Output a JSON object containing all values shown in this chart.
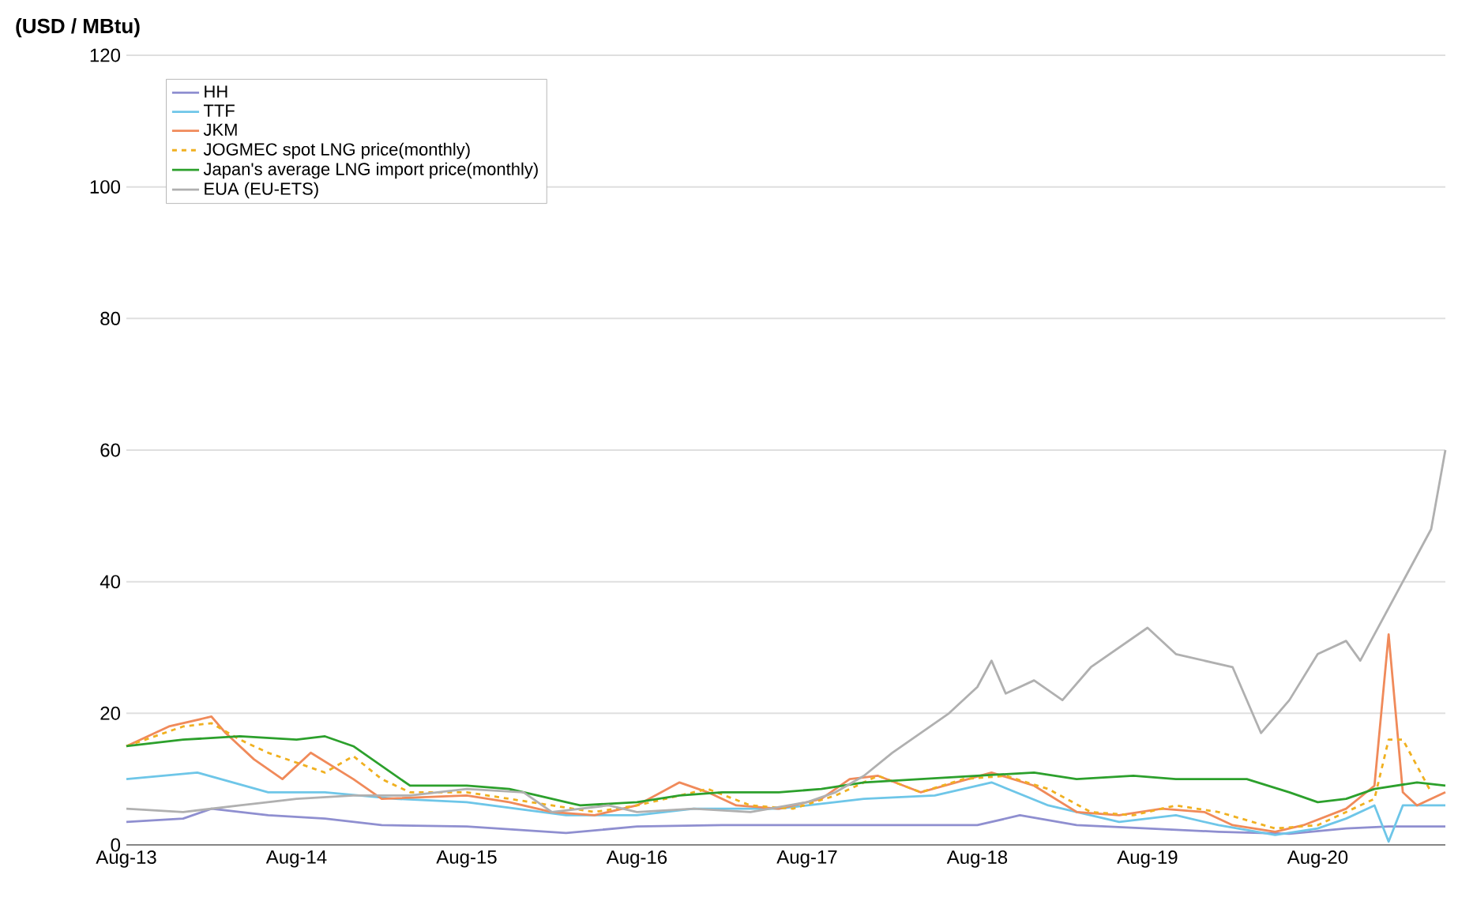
{
  "chart_data": {
    "type": "line",
    "ylabel": "(USD / MBtu)",
    "grid": "y",
    "legend": "top left",
    "ylim": [
      0,
      120
    ],
    "yticks": [
      0,
      20,
      40,
      60,
      80,
      100,
      120
    ],
    "xlim": [
      "2013-08",
      "2021-05"
    ],
    "xticks": [
      {
        "value": "2013-08",
        "label": "Aug-13"
      },
      {
        "value": "2014-08",
        "label": "Aug-14"
      },
      {
        "value": "2015-08",
        "label": "Aug-15"
      },
      {
        "value": "2016-08",
        "label": "Aug-16"
      },
      {
        "value": "2017-08",
        "label": "Aug-17"
      },
      {
        "value": "2018-08",
        "label": "Aug-18"
      },
      {
        "value": "2019-08",
        "label": "Aug-19"
      },
      {
        "value": "2020-08",
        "label": "Aug-20"
      }
    ],
    "series": [
      {
        "name": "HH",
        "color": "#8f8fd0",
        "x": [
          "2013-08",
          "2013-12",
          "2014-02",
          "2014-06",
          "2014-10",
          "2015-02",
          "2015-08",
          "2016-03",
          "2016-08",
          "2017-02",
          "2017-08",
          "2018-02",
          "2018-08",
          "2018-11",
          "2019-03",
          "2019-08",
          "2020-01",
          "2020-06",
          "2020-10",
          "2021-01",
          "2021-05"
        ],
        "values": [
          3.5,
          4,
          5.5,
          4.5,
          4,
          3,
          2.8,
          1.8,
          2.8,
          3,
          3,
          3,
          3,
          4.5,
          3,
          2.5,
          2,
          1.7,
          2.5,
          2.8,
          2.8
        ]
      },
      {
        "name": "TTF",
        "color": "#6ec6e8",
        "x": [
          "2013-08",
          "2014-01",
          "2014-06",
          "2014-10",
          "2015-03",
          "2015-08",
          "2016-03",
          "2016-08",
          "2016-12",
          "2017-06",
          "2017-12",
          "2018-05",
          "2018-09",
          "2019-01",
          "2019-06",
          "2019-10",
          "2020-01",
          "2020-05",
          "2020-08",
          "2020-10",
          "2020-12",
          "2021-01",
          "2021-02",
          "2021-05"
        ],
        "values": [
          10,
          11,
          8,
          8,
          7,
          6.5,
          4.5,
          4.5,
          5.5,
          5.5,
          7,
          7.5,
          9.5,
          6,
          3.5,
          4.5,
          3,
          1.5,
          2.5,
          4,
          6,
          0.5,
          6,
          6
        ]
      },
      {
        "name": "JKM",
        "color": "#f08a5a",
        "x": [
          "2013-08",
          "2013-11",
          "2014-02",
          "2014-03",
          "2014-05",
          "2014-07",
          "2014-09",
          "2014-12",
          "2015-02",
          "2015-08",
          "2015-11",
          "2016-02",
          "2016-05",
          "2016-08",
          "2016-11",
          "2017-01",
          "2017-03",
          "2017-06",
          "2017-09",
          "2017-11",
          "2018-01",
          "2018-04",
          "2018-09",
          "2018-12",
          "2019-03",
          "2019-06",
          "2019-09",
          "2019-12",
          "2020-02",
          "2020-05",
          "2020-07",
          "2020-10",
          "2020-12",
          "2021-01",
          "2021-02",
          "2021-03",
          "2021-05"
        ],
        "values": [
          15,
          18,
          19.5,
          17,
          13,
          10,
          14,
          10,
          7,
          7.5,
          6.5,
          5,
          4.5,
          6,
          9.5,
          8,
          6,
          5.5,
          7,
          10,
          10.5,
          8,
          11,
          9,
          5,
          4.5,
          5.5,
          5,
          3,
          2,
          3,
          5.5,
          9,
          32,
          8,
          6,
          8
        ]
      },
      {
        "name": "JOGMEC spot LNG price(monthly)",
        "color": "#f0b020",
        "line_style": "dashed",
        "x": [
          "2013-08",
          "2013-10",
          "2013-12",
          "2014-02",
          "2014-04",
          "2014-06",
          "2014-08",
          "2014-10",
          "2014-12",
          "2015-02",
          "2015-04",
          "2015-08",
          "2015-11",
          "2016-02",
          "2016-05",
          "2016-08",
          "2016-11",
          "2017-01",
          "2017-04",
          "2017-07",
          "2017-10",
          "2018-01",
          "2018-04",
          "2018-07",
          "2018-10",
          "2019-01",
          "2019-04",
          "2019-07",
          "2019-10",
          "2020-01",
          "2020-05",
          "2020-08",
          "2020-10",
          "2020-12",
          "2021-01",
          "2021-02",
          "2021-04"
        ],
        "values": [
          15,
          16.5,
          18,
          18.5,
          16,
          14,
          12.5,
          11,
          13.5,
          10,
          8,
          8,
          7,
          6,
          5,
          6,
          7.5,
          8.5,
          6,
          5.5,
          7.5,
          10.5,
          8,
          10,
          10.5,
          8.5,
          5,
          4.5,
          6,
          5,
          2.5,
          3,
          5,
          7,
          16,
          16,
          8
        ]
      },
      {
        "name": "Japan's average LNG import price(monthly)",
        "color": "#2ca02c",
        "x": [
          "2013-08",
          "2013-12",
          "2014-04",
          "2014-08",
          "2014-10",
          "2014-12",
          "2015-02",
          "2015-04",
          "2015-08",
          "2015-11",
          "2016-01",
          "2016-04",
          "2016-08",
          "2016-11",
          "2017-02",
          "2017-06",
          "2017-09",
          "2017-12",
          "2018-04",
          "2018-08",
          "2018-12",
          "2019-03",
          "2019-07",
          "2019-10",
          "2020-03",
          "2020-06",
          "2020-08",
          "2020-10",
          "2020-12",
          "2021-03",
          "2021-05"
        ],
        "values": [
          15,
          16,
          16.5,
          16,
          16.5,
          15,
          12,
          9,
          9,
          8.5,
          7.5,
          6,
          6.5,
          7.5,
          8,
          8,
          8.5,
          9.5,
          10,
          10.5,
          11,
          10,
          10.5,
          10,
          10,
          8,
          6.5,
          7,
          8.5,
          9.5,
          9
        ]
      },
      {
        "name": "EUA (EU-ETS)",
        "color": "#b0b0b0",
        "x": [
          "2013-08",
          "2013-12",
          "2014-04",
          "2014-08",
          "2014-12",
          "2015-04",
          "2015-08",
          "2015-12",
          "2016-02",
          "2016-06",
          "2016-08",
          "2016-12",
          "2017-04",
          "2017-08",
          "2017-10",
          "2017-12",
          "2018-02",
          "2018-04",
          "2018-06",
          "2018-08",
          "2018-09",
          "2018-10",
          "2018-12",
          "2019-02",
          "2019-04",
          "2019-08",
          "2019-10",
          "2019-12",
          "2020-02",
          "2020-04",
          "2020-06",
          "2020-08",
          "2020-10",
          "2020-11",
          "2021-02",
          "2021-03",
          "2021-04",
          "2021-05"
        ],
        "values": [
          5.5,
          5,
          6,
          7,
          7.5,
          7.5,
          8.5,
          8,
          5,
          6,
          5,
          5.5,
          5,
          6.5,
          8,
          10.5,
          14,
          17,
          20,
          24,
          28,
          23,
          25,
          22,
          27,
          33,
          29,
          28,
          27,
          17,
          22,
          29,
          31,
          28,
          40,
          44,
          48,
          60
        ]
      }
    ]
  }
}
